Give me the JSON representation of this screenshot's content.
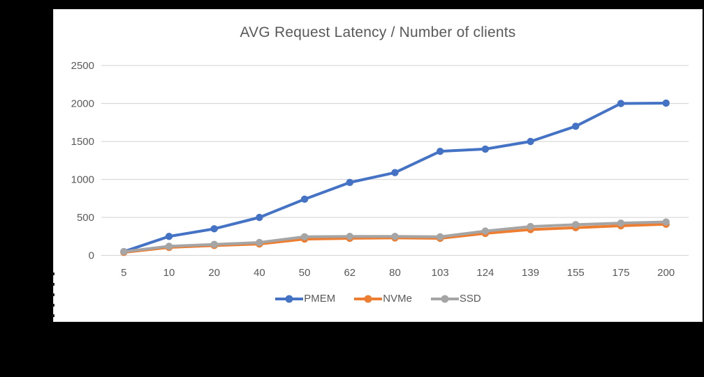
{
  "window": {
    "background": "#000000",
    "panel_background": "#ffffff",
    "panel_border": "#dcdcdc"
  },
  "chart_data": {
    "type": "line",
    "title": "AVG Request Latency / Number of clients",
    "xlabel": "",
    "ylabel": "",
    "categories": [
      5,
      10,
      20,
      40,
      50,
      62,
      80,
      103,
      124,
      139,
      155,
      175,
      200
    ],
    "series": [
      {
        "name": "PMEM",
        "color": "#4472C4",
        "values": [
          50,
          250,
          350,
          500,
          740,
          960,
          1090,
          1370,
          1400,
          1500,
          1700,
          2000,
          2005
        ]
      },
      {
        "name": "NVMe",
        "color": "#ED7D31",
        "values": [
          40,
          105,
          130,
          150,
          215,
          225,
          230,
          225,
          290,
          340,
          365,
          390,
          410
        ]
      },
      {
        "name": "SSD",
        "color": "#A5A5A5",
        "values": [
          50,
          120,
          145,
          170,
          245,
          250,
          250,
          245,
          320,
          380,
          405,
          425,
          440
        ]
      }
    ],
    "y_ticks": [
      0,
      500,
      1000,
      1500,
      2000,
      2500
    ],
    "ylim": [
      0,
      2500
    ],
    "grid": true,
    "gridline_color": "#D9D9D9",
    "text_color": "#595959",
    "legend_position": "bottom",
    "marker": "circle",
    "line_width": 4
  }
}
